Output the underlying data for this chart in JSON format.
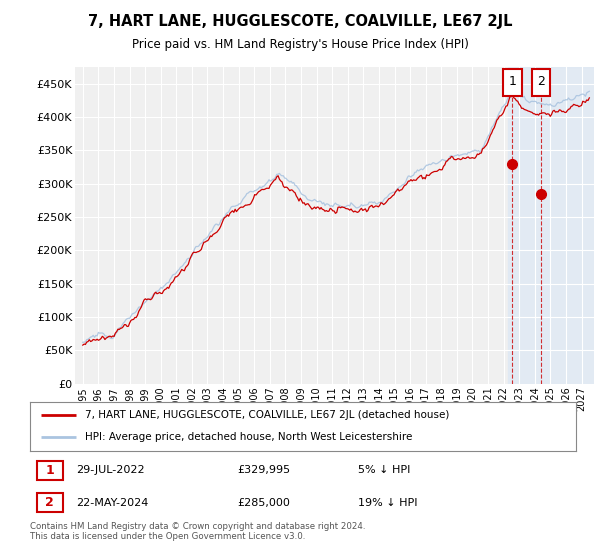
{
  "title": "7, HART LANE, HUGGLESCOTE, COALVILLE, LE67 2JL",
  "subtitle": "Price paid vs. HM Land Registry's House Price Index (HPI)",
  "legend_line1": "7, HART LANE, HUGGLESCOTE, COALVILLE, LE67 2JL (detached house)",
  "legend_line2": "HPI: Average price, detached house, North West Leicestershire",
  "annotation1_date": "29-JUL-2022",
  "annotation1_price": "£329,995",
  "annotation1_hpi": "5% ↓ HPI",
  "annotation2_date": "22-MAY-2024",
  "annotation2_price": "£285,000",
  "annotation2_hpi": "19% ↓ HPI",
  "footer": "Contains HM Land Registry data © Crown copyright and database right 2024.\nThis data is licensed under the Open Government Licence v3.0.",
  "ylim": [
    0,
    475000
  ],
  "yticks": [
    0,
    50000,
    100000,
    150000,
    200000,
    250000,
    300000,
    350000,
    400000,
    450000
  ],
  "ytick_labels": [
    "£0",
    "£50K",
    "£100K",
    "£150K",
    "£200K",
    "£250K",
    "£300K",
    "£350K",
    "£400K",
    "£450K"
  ],
  "background_color": "#ffffff",
  "plot_bg_color": "#f0f0f0",
  "grid_color": "#ffffff",
  "hpi_color": "#aac4e0",
  "price_color": "#cc0000",
  "sale1_x": 2022.57,
  "sale1_y": 329995,
  "sale2_x": 2024.39,
  "sale2_y": 285000,
  "shade_start": 2022.3,
  "shade_color": "#dde8f5",
  "annotation_box_color": "#cc0000",
  "xtick_years": [
    1995,
    1996,
    1997,
    1998,
    1999,
    2000,
    2001,
    2002,
    2003,
    2004,
    2005,
    2006,
    2007,
    2008,
    2009,
    2010,
    2011,
    2012,
    2013,
    2014,
    2015,
    2016,
    2017,
    2018,
    2019,
    2020,
    2021,
    2022,
    2023,
    2024,
    2025,
    2026,
    2027
  ]
}
